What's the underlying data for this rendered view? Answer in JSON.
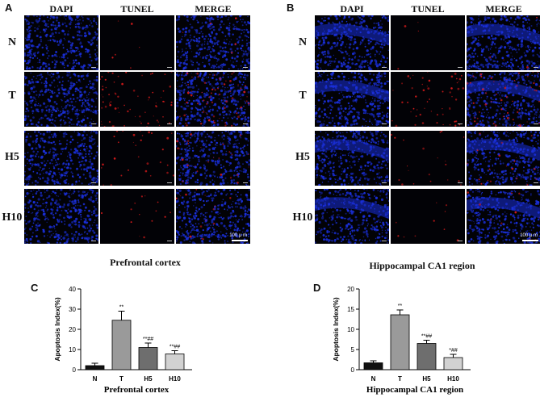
{
  "panels": {
    "A": {
      "letter": "A",
      "columns": [
        "DAPI",
        "TUNEL",
        "MERGE"
      ],
      "rows": [
        "N",
        "T",
        "H5",
        "H10"
      ],
      "scalebar": "100 μ m",
      "caption": "Prefrontal cortex"
    },
    "B": {
      "letter": "B",
      "columns": [
        "DAPI",
        "TUNEL",
        "MERGE"
      ],
      "rows": [
        "N",
        "T",
        "H5",
        "H10"
      ],
      "scalebar": "100 μ m",
      "caption": "Hippocampal CA1 region"
    },
    "C": {
      "letter": "C"
    },
    "D": {
      "letter": "D"
    }
  },
  "colors": {
    "dapi": "#1a2fd8",
    "tunel": "#d21a1a",
    "bar_fills": [
      "#111111",
      "#9a9a9a",
      "#6e6e6e",
      "#d2d2d2"
    ]
  },
  "chart_data": [
    {
      "type": "bar",
      "categories": [
        "N",
        "T",
        "H5",
        "H10"
      ],
      "values": [
        2.0,
        24.5,
        11.0,
        7.8
      ],
      "errors": [
        1.2,
        4.5,
        2.2,
        1.6
      ],
      "annotations": [
        "",
        "**",
        "**##",
        "**##"
      ],
      "ylabel": "Apoptosis Index(%)",
      "xlabel": "Prefrontal cortex",
      "ylim": [
        0,
        40
      ],
      "yticks": [
        0,
        10,
        20,
        30,
        40
      ]
    },
    {
      "type": "bar",
      "categories": [
        "N",
        "T",
        "H5",
        "H10"
      ],
      "values": [
        1.7,
        13.6,
        6.5,
        3.0
      ],
      "errors": [
        0.5,
        1.2,
        0.8,
        0.8
      ],
      "annotations": [
        "",
        "**",
        "**##",
        "*##"
      ],
      "ylabel": "Apoptosis Index(%)",
      "xlabel": "Hippocampal CA1 region",
      "ylim": [
        0,
        20
      ],
      "yticks": [
        0,
        5,
        10,
        15,
        20
      ]
    }
  ]
}
